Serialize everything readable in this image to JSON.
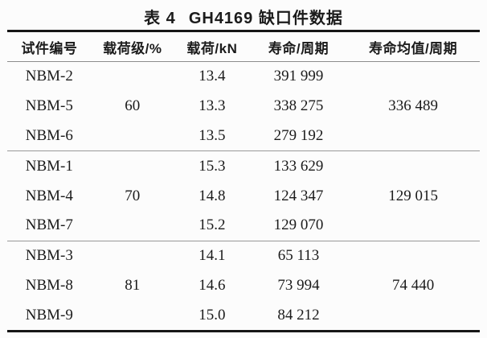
{
  "title": {
    "prefix": "表 4",
    "caption": "GH4169 缺口件数据"
  },
  "table": {
    "headers": [
      "试件编号",
      "载荷级/%",
      "载荷/kN",
      "寿命/周期",
      "寿命均值/周期"
    ],
    "groups": [
      {
        "load_level": "60",
        "mean_life": "336 489",
        "rows": [
          {
            "specimen": "NBM-2",
            "load": "13.4",
            "life": "391 999"
          },
          {
            "specimen": "NBM-5",
            "load": "13.3",
            "life": "338 275"
          },
          {
            "specimen": "NBM-6",
            "load": "13.5",
            "life": "279 192"
          }
        ]
      },
      {
        "load_level": "70",
        "mean_life": "129 015",
        "rows": [
          {
            "specimen": "NBM-1",
            "load": "15.3",
            "life": "133 629"
          },
          {
            "specimen": "NBM-4",
            "load": "14.8",
            "life": "124 347"
          },
          {
            "specimen": "NBM-7",
            "load": "15.2",
            "life": "129 070"
          }
        ]
      },
      {
        "load_level": "81",
        "mean_life": "74 440",
        "rows": [
          {
            "specimen": "NBM-3",
            "load": "14.1",
            "life": "65 113"
          },
          {
            "specimen": "NBM-8",
            "load": "14.6",
            "life": "73 994"
          },
          {
            "specimen": "NBM-9",
            "load": "15.0",
            "life": "84 212"
          }
        ]
      }
    ]
  },
  "colors": {
    "thick_rule": "#161616",
    "thin_rule": "#8d8d8d",
    "text": "#1b1b1b",
    "background": "#fcfcfc"
  }
}
